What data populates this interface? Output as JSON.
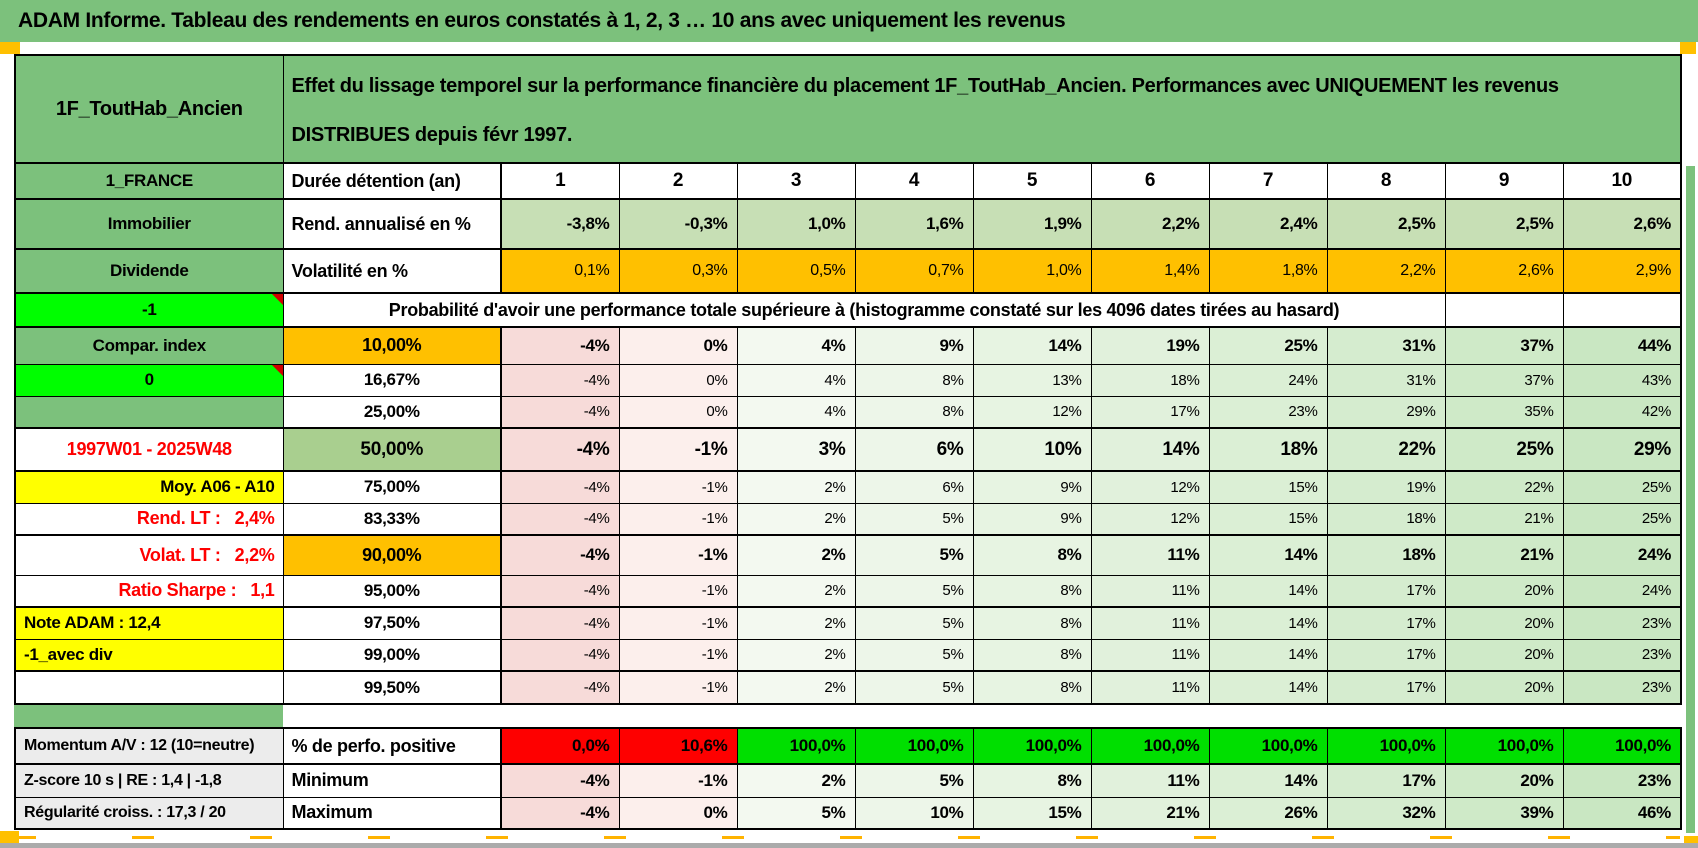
{
  "title": "ADAM Informe. Tableau des rendements en euros constatés à 1, 2, 3 … 10 ans avec uniquement les revenus",
  "panel": {
    "fund_name": "1F_ToutHab_Ancien",
    "description": "Effet du lissage temporel sur la performance financière du placement 1F_ToutHab_Ancien. Performances avec UNIQUEMENT les revenus DISTRIBUES depuis févr 1997."
  },
  "colors": {
    "header_green": "#7cc17c",
    "light_green_row": "#c7dfb5",
    "mid_green": "#a9cf8f",
    "orange": "#ffc000",
    "lime_green": "#00fe00",
    "success_green": "#00df00",
    "alert_red": "#fe0000",
    "yellow": "#ffff00",
    "gray_label": "#ececec",
    "negative_pink": "#f7dbd9",
    "positive_green_scale": "#c9e7c2"
  },
  "table": {
    "region_label": "1_FRANCE",
    "duration_label": "Durée détention (an)",
    "years": [
      "1",
      "2",
      "3",
      "4",
      "5",
      "6",
      "7",
      "8",
      "9",
      "10"
    ],
    "main_rows": [
      {
        "row_style": "r-rend",
        "a": "Immobilier",
        "a_style": "a-green",
        "b": "Rend. annualisé en %",
        "b_style": "b-left",
        "values": [
          "-3,8%",
          "-0,3%",
          "1,0%",
          "1,6%",
          "1,9%",
          "2,2%",
          "2,4%",
          "2,5%",
          "2,5%",
          "2,6%"
        ]
      },
      {
        "row_style": "r-vol thickt thickb",
        "a": "Dividende",
        "a_style": "a-green",
        "b": "Volatilité en %",
        "b_style": "b-left",
        "values": [
          "0,1%",
          "0,3%",
          "0,5%",
          "0,7%",
          "1,0%",
          "1,4%",
          "1,8%",
          "2,2%",
          "2,6%",
          "2,9%"
        ]
      },
      {
        "row_style": "r-span thickb",
        "type": "span",
        "a": "-1",
        "a_style": "a-lime corner",
        "text": "Probabilité d'avoir une performance totale supérieure à (histogramme constaté sur les 4096 dates tirées au hasard)",
        "empty_cells": 2
      },
      {
        "row_style": "prob vb h37",
        "a": "Compar. index",
        "a_style": "a-green",
        "b": "10,00%",
        "b_style": "b-orange",
        "values": [
          "-4%",
          "0%",
          "4%",
          "9%",
          "14%",
          "19%",
          "25%",
          "31%",
          "37%",
          "44%"
        ]
      },
      {
        "row_style": "prob h32",
        "a": "0",
        "a_style": "a-lime corner",
        "b": "16,67%",
        "b_style": "b-pct",
        "values": [
          "-4%",
          "0%",
          "4%",
          "8%",
          "13%",
          "18%",
          "24%",
          "31%",
          "37%",
          "43%"
        ]
      },
      {
        "row_style": "prob h32 thickb",
        "a": "",
        "a_style": "a-green",
        "b": "25,00%",
        "b_style": "b-pct",
        "values": [
          "-4%",
          "0%",
          "4%",
          "8%",
          "12%",
          "17%",
          "23%",
          "29%",
          "35%",
          "42%"
        ]
      },
      {
        "row_style": "prob vb vbig h43 thickb",
        "a": "1997W01 - 2025W48",
        "a_style": "a-period",
        "b": "50,00%",
        "b_style": "b-green",
        "values": [
          "-4%",
          "-1%",
          "3%",
          "6%",
          "10%",
          "14%",
          "18%",
          "22%",
          "25%",
          "29%"
        ]
      },
      {
        "row_style": "prob h32",
        "a": "Moy. A06 - A10",
        "a_style": "a-yellow-r",
        "b": "75,00%",
        "b_style": "b-pct",
        "values": [
          "-4%",
          "-1%",
          "2%",
          "6%",
          "9%",
          "12%",
          "15%",
          "19%",
          "22%",
          "25%"
        ]
      },
      {
        "row_style": "prob h32 thickb",
        "a": "Rend. LT :   2,4%",
        "a_style": "a-red-r",
        "b": "83,33%",
        "b_style": "b-pct",
        "values": [
          "-4%",
          "-1%",
          "2%",
          "5%",
          "9%",
          "12%",
          "15%",
          "18%",
          "21%",
          "25%"
        ]
      },
      {
        "row_style": "prob vb h40",
        "a": "Volat. LT :   2,2%",
        "a_style": "a-red-r",
        "b": "90,00%",
        "b_style": "b-orange",
        "values": [
          "-4%",
          "-1%",
          "2%",
          "5%",
          "8%",
          "11%",
          "14%",
          "18%",
          "21%",
          "24%"
        ]
      },
      {
        "row_style": "prob h32 thickb",
        "a": "Ratio Sharpe :   1,1",
        "a_style": "a-red-r",
        "b": "95,00%",
        "b_style": "b-pct",
        "values": [
          "-4%",
          "-1%",
          "2%",
          "5%",
          "8%",
          "11%",
          "14%",
          "17%",
          "20%",
          "24%"
        ]
      },
      {
        "row_style": "prob h32",
        "a": "Note ADAM : 12,4",
        "a_style": "a-yellow-l",
        "b": "97,50%",
        "b_style": "b-pct",
        "values": [
          "-4%",
          "-1%",
          "2%",
          "5%",
          "8%",
          "11%",
          "14%",
          "17%",
          "20%",
          "23%"
        ]
      },
      {
        "row_style": "prob h32 thickb",
        "a": "-1_avec div",
        "a_style": "a-yellow-l",
        "b": "99,00%",
        "b_style": "b-pct",
        "values": [
          "-4%",
          "-1%",
          "2%",
          "5%",
          "8%",
          "11%",
          "14%",
          "17%",
          "20%",
          "23%"
        ]
      },
      {
        "row_style": "prob h33",
        "a": "",
        "a_style": "a-plain",
        "b": "99,50%",
        "b_style": "b-pct",
        "values": [
          "-4%",
          "-1%",
          "2%",
          "5%",
          "8%",
          "11%",
          "14%",
          "17%",
          "20%",
          "23%"
        ]
      }
    ],
    "bottom_rows": [
      {
        "row_style": "r-perf vb thickb",
        "a": "Momentum A/V : 12 (10=neutre)",
        "a_style": "a-gray",
        "b": "% de perfo. positive",
        "b_style": "b-left",
        "values": [
          "0,0%",
          "10,6%",
          "100,0%",
          "100,0%",
          "100,0%",
          "100,0%",
          "100,0%",
          "100,0%",
          "100,0%",
          "100,0%"
        ],
        "value_colors": [
          "#fe0000",
          "#fe0000",
          "#00df00",
          "#00df00",
          "#00df00",
          "#00df00",
          "#00df00",
          "#00df00",
          "#00df00",
          "#00df00"
        ]
      },
      {
        "row_style": "prob vb h33",
        "a": "Z-score 10 s | RE : 1,4 | -1,8",
        "a_style": "a-gray",
        "b": "Minimum",
        "b_style": "b-left",
        "values": [
          "-4%",
          "-1%",
          "2%",
          "5%",
          "8%",
          "11%",
          "14%",
          "17%",
          "20%",
          "23%"
        ]
      },
      {
        "row_style": "prob vb h32",
        "a": "Régularité croiss. : 17,3 / 20",
        "a_style": "a-gray",
        "b": "Maximum",
        "b_style": "b-left",
        "values": [
          "-4%",
          "0%",
          "5%",
          "10%",
          "15%",
          "21%",
          "26%",
          "32%",
          "39%",
          "46%"
        ]
      }
    ]
  }
}
